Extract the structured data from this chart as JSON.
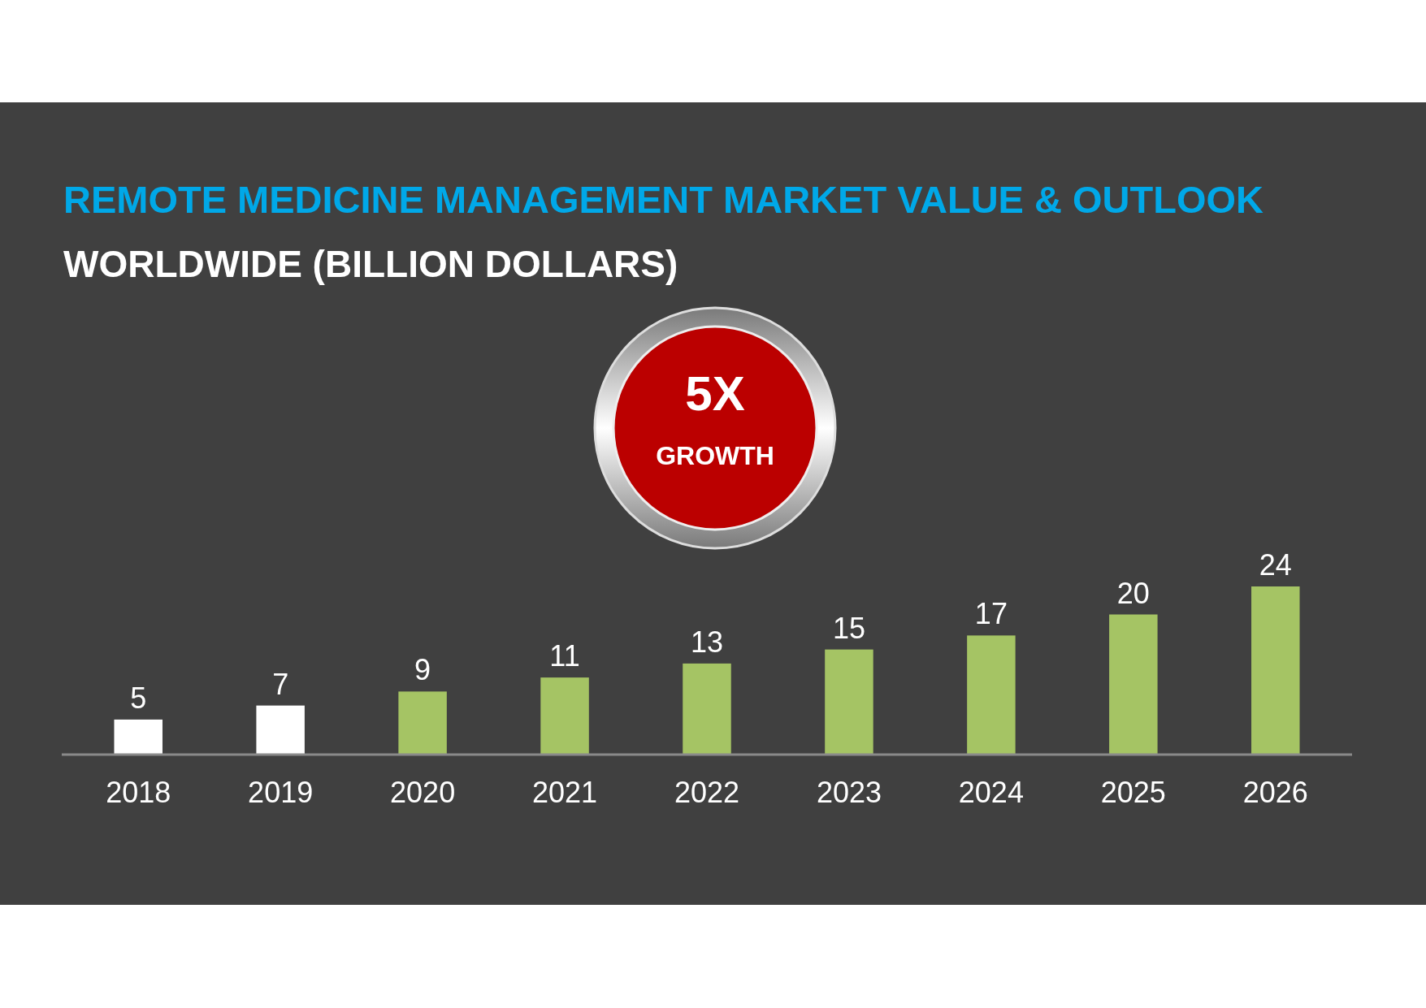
{
  "chart_data": {
    "type": "bar",
    "title": "REMOTE MEDICINE MANAGEMENT MARKET VALUE & OUTLOOK",
    "subtitle": "WORLDWIDE (BILLION DOLLARS)",
    "categories": [
      "2018",
      "2019",
      "2020",
      "2021",
      "2022",
      "2023",
      "2024",
      "2025",
      "2026"
    ],
    "values": [
      5,
      7,
      9,
      11,
      13,
      15,
      17,
      20,
      24
    ],
    "colors": [
      "#ffffff",
      "#ffffff",
      "#a5c464",
      "#a5c464",
      "#a5c464",
      "#a5c464",
      "#a5c464",
      "#a5c464",
      "#a5c464"
    ],
    "data_labels": true,
    "annotations": [
      "5X",
      "GROWTH"
    ]
  }
}
